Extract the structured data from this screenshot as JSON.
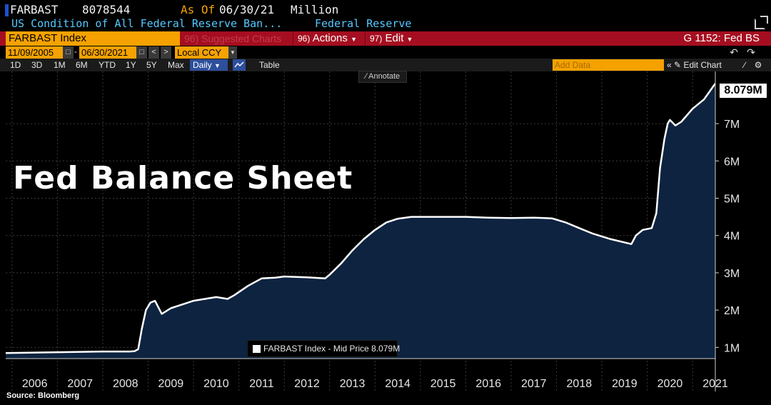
{
  "header": {
    "ticker": "FARBAST",
    "value": "8078544",
    "as_of_label": "As Of",
    "as_of_date": "06/30/21",
    "unit": "Million",
    "description": "US Condition of All Federal Reserve Ban...",
    "source_name": "Federal Reserve"
  },
  "toolbar": {
    "ticker_field": "FARBAST Index",
    "suggested_charts": "96) Suggested Charts",
    "actions_num": "96)",
    "actions_label": "Actions",
    "edit_num": "97)",
    "edit_label": "Edit",
    "g_label": "G 1152: Fed BS",
    "start_date": "11/09/2005",
    "end_date": "06/30/2021",
    "currency": "Local CCY",
    "ranges": [
      "1D",
      "3D",
      "1M",
      "6M",
      "YTD",
      "1Y",
      "5Y",
      "Max"
    ],
    "frequency": "Daily",
    "table_label": "Table",
    "add_data_placeholder": "Add Data",
    "edit_chart_label": "Edit Chart",
    "annotate_label": "Annotate"
  },
  "title_overlay": "Fed Balance Sheet",
  "legend_text": "FARBAST Index - Mid Price 8.079M",
  "last_value": "8.079M",
  "source": "Source: Bloomberg",
  "colors": {
    "background": "#000000",
    "area_fill": "#0d2340",
    "line": "#ffffff",
    "accent_orange": "#f5a200",
    "bar_red": "#a50e20",
    "cyan_text": "#55c8ff"
  },
  "chart_data": {
    "type": "area",
    "title": "Fed Balance Sheet",
    "xlabel": "",
    "ylabel": "",
    "x_tick_labels": [
      "2006",
      "2007",
      "2008",
      "2009",
      "2010",
      "2011",
      "2012",
      "2013",
      "2014",
      "2015",
      "2016",
      "2017",
      "2018",
      "2019",
      "2020",
      "2021"
    ],
    "y_tick_labels": [
      "1M",
      "2M",
      "3M",
      "4M",
      "5M",
      "6M",
      "7M"
    ],
    "y_tick_values": [
      1000000,
      2000000,
      3000000,
      4000000,
      5000000,
      6000000,
      7000000
    ],
    "xlim": [
      2005.86,
      2021.5
    ],
    "ylim": [
      700000,
      8400000
    ],
    "grid": true,
    "legend_position": "bottom-center",
    "series": [
      {
        "name": "FARBAST Index - Mid Price",
        "x": [
          2005.86,
          2006.5,
          2007.0,
          2007.5,
          2008.0,
          2008.6,
          2008.7,
          2008.78,
          2008.86,
          2008.95,
          2009.05,
          2009.15,
          2009.3,
          2009.5,
          2009.75,
          2010.0,
          2010.5,
          2010.75,
          2010.9,
          2011.2,
          2011.5,
          2011.8,
          2012.0,
          2012.5,
          2012.9,
          2013.0,
          2013.25,
          2013.5,
          2013.75,
          2014.0,
          2014.25,
          2014.5,
          2014.8,
          2015.0,
          2015.5,
          2016.0,
          2016.5,
          2017.0,
          2017.5,
          2017.9,
          2018.2,
          2018.5,
          2018.8,
          2019.2,
          2019.55,
          2019.65,
          2019.75,
          2019.9,
          2020.1,
          2020.2,
          2020.28,
          2020.38,
          2020.45,
          2020.5,
          2020.62,
          2020.75,
          2021.0,
          2021.25,
          2021.5
        ],
        "values": [
          850000,
          860000,
          870000,
          880000,
          890000,
          890000,
          900000,
          950000,
          1500000,
          2000000,
          2200000,
          2250000,
          1900000,
          2050000,
          2150000,
          2250000,
          2350000,
          2300000,
          2400000,
          2650000,
          2850000,
          2870000,
          2900000,
          2880000,
          2850000,
          2950000,
          3250000,
          3600000,
          3900000,
          4150000,
          4350000,
          4450000,
          4500000,
          4500000,
          4500000,
          4500000,
          4480000,
          4470000,
          4480000,
          4460000,
          4350000,
          4200000,
          4050000,
          3900000,
          3800000,
          3770000,
          4000000,
          4150000,
          4200000,
          4600000,
          5800000,
          6600000,
          7000000,
          7100000,
          6950000,
          7050000,
          7400000,
          7650000,
          8079000
        ]
      }
    ]
  }
}
